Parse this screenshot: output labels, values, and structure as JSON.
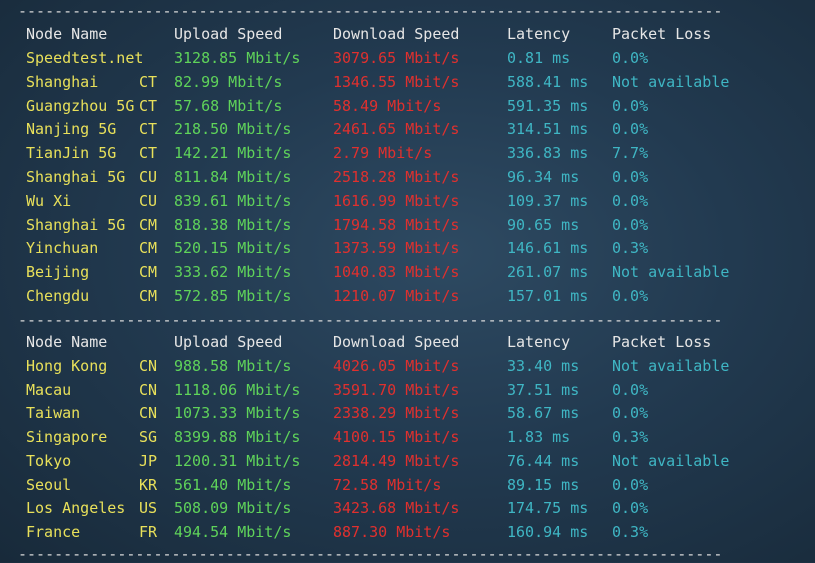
{
  "separator": "------------------------------------------------------------------------------",
  "headers": {
    "node_name": "Node Name",
    "upload": "Upload Speed",
    "download": "Download Speed",
    "latency": "Latency",
    "packet_loss": "Packet Loss"
  },
  "colors": {
    "node": "#e8e05a",
    "upload": "#5fd35a",
    "download": "#e0302e",
    "latency": "#3fb6c4",
    "loss": "#3fb6c4"
  },
  "domestic": [
    {
      "name": "Speedtest.net",
      "isp": "",
      "up": "3128.85 Mbit/s",
      "down": "3079.65 Mbit/s",
      "lat": "0.81 ms",
      "loss": "0.0%"
    },
    {
      "name": "Shanghai",
      "isp": "CT",
      "up": "82.99 Mbit/s",
      "down": "1346.55 Mbit/s",
      "lat": "588.41 ms",
      "loss": "Not available"
    },
    {
      "name": "Guangzhou 5G",
      "isp": "CT",
      "up": "57.68 Mbit/s",
      "down": "58.49 Mbit/s",
      "lat": "591.35 ms",
      "loss": "0.0%"
    },
    {
      "name": "Nanjing 5G",
      "isp": "CT",
      "up": "218.50 Mbit/s",
      "down": "2461.65 Mbit/s",
      "lat": "314.51 ms",
      "loss": "0.0%"
    },
    {
      "name": "TianJin 5G",
      "isp": "CT",
      "up": "142.21 Mbit/s",
      "down": "2.79 Mbit/s",
      "lat": "336.83 ms",
      "loss": "7.7%"
    },
    {
      "name": "Shanghai 5G",
      "isp": "CU",
      "up": "811.84 Mbit/s",
      "down": "2518.28 Mbit/s",
      "lat": "96.34 ms",
      "loss": "0.0%"
    },
    {
      "name": "Wu Xi",
      "isp": "CU",
      "up": "839.61 Mbit/s",
      "down": "1616.99 Mbit/s",
      "lat": "109.37 ms",
      "loss": "0.0%"
    },
    {
      "name": "Shanghai 5G",
      "isp": "CM",
      "up": "818.38 Mbit/s",
      "down": "1794.58 Mbit/s",
      "lat": "90.65 ms",
      "loss": "0.0%"
    },
    {
      "name": "Yinchuan",
      "isp": "CM",
      "up": "520.15 Mbit/s",
      "down": "1373.59 Mbit/s",
      "lat": "146.61 ms",
      "loss": "0.3%"
    },
    {
      "name": "Beijing",
      "isp": "CM",
      "up": "333.62 Mbit/s",
      "down": "1040.83 Mbit/s",
      "lat": "261.07 ms",
      "loss": "Not available"
    },
    {
      "name": "Chengdu",
      "isp": "CM",
      "up": "572.85 Mbit/s",
      "down": "1210.07 Mbit/s",
      "lat": "157.01 ms",
      "loss": "0.0%"
    }
  ],
  "international": [
    {
      "name": "Hong Kong",
      "isp": "CN",
      "up": "988.58 Mbit/s",
      "down": "4026.05 Mbit/s",
      "lat": "33.40 ms",
      "loss": "Not available"
    },
    {
      "name": "Macau",
      "isp": "CN",
      "up": "1118.06 Mbit/s",
      "down": "3591.70 Mbit/s",
      "lat": "37.51 ms",
      "loss": "0.0%"
    },
    {
      "name": "Taiwan",
      "isp": "CN",
      "up": "1073.33 Mbit/s",
      "down": "2338.29 Mbit/s",
      "lat": "58.67 ms",
      "loss": "0.0%"
    },
    {
      "name": "Singapore",
      "isp": "SG",
      "up": "8399.88 Mbit/s",
      "down": "4100.15 Mbit/s",
      "lat": "1.83 ms",
      "loss": "0.3%"
    },
    {
      "name": "Tokyo",
      "isp": "JP",
      "up": "1200.31 Mbit/s",
      "down": "2814.49 Mbit/s",
      "lat": "76.44 ms",
      "loss": "Not available"
    },
    {
      "name": "Seoul",
      "isp": "KR",
      "up": "561.40 Mbit/s",
      "down": "72.58 Mbit/s",
      "lat": "89.15 ms",
      "loss": "0.0%"
    },
    {
      "name": "Los Angeles",
      "isp": "US",
      "up": "508.09 Mbit/s",
      "down": "3423.68 Mbit/s",
      "lat": "174.75 ms",
      "loss": "0.0%"
    },
    {
      "name": "France",
      "isp": "FR",
      "up": "494.54 Mbit/s",
      "down": "887.30 Mbit/s",
      "lat": "160.94 ms",
      "loss": "0.3%"
    }
  ]
}
